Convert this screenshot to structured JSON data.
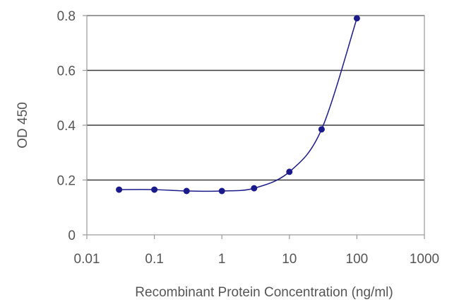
{
  "chart_data": {
    "type": "scatter",
    "title": "",
    "xlabel": "Recombinant Protein Concentration (ng/ml)",
    "ylabel": "OD 450",
    "x_scale": "log",
    "xlim": [
      0.01,
      1000
    ],
    "ylim": [
      0,
      0.8
    ],
    "x_ticks": [
      0.01,
      0.1,
      1,
      10,
      100,
      1000
    ],
    "x_tick_labels": [
      "0.01",
      "0.1",
      "1",
      "10",
      "100",
      "1000"
    ],
    "y_ticks": [
      0,
      0.2,
      0.4,
      0.6,
      0.8
    ],
    "y_tick_labels": [
      "0",
      "0.2",
      "0.4",
      "0.6",
      "0.8"
    ],
    "grid": "horizontal",
    "legend": "none",
    "series": [
      {
        "x": [
          0.03,
          0.1,
          0.3,
          1,
          3,
          10,
          30,
          100
        ],
        "y": [
          0.165,
          0.165,
          0.16,
          0.16,
          0.17,
          0.23,
          0.385,
          0.79
        ],
        "color": "#1a1a8c",
        "line": "smooth"
      }
    ]
  }
}
